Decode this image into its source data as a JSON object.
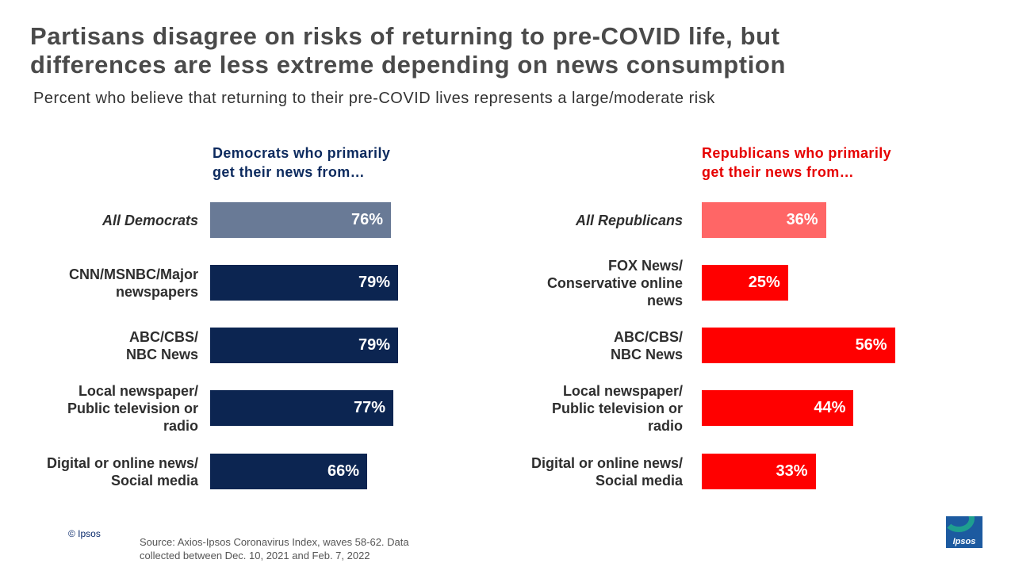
{
  "title_lines": [
    "Partisans disagree on risks of returning to pre-COVID life, but",
    "differences are less extreme depending on news consumption"
  ],
  "subtitle": "Percent who believe that returning to their pre-COVID lives represents a large/moderate risk",
  "chart_data": [
    {
      "type": "bar",
      "orientation": "horizontal",
      "heading_lines": [
        "Democrats who primarily",
        "get their news from…"
      ],
      "heading_color": "#0c2a5e",
      "xlim": [
        0,
        100
      ],
      "categories": [
        {
          "lines": [
            "All Democrats"
          ],
          "italic": true
        },
        {
          "lines": [
            "CNN/MSNBC/Major",
            "newspapers"
          ],
          "italic": false
        },
        {
          "lines": [
            "ABC/CBS/",
            "NBC News"
          ],
          "italic": false
        },
        {
          "lines": [
            "Local newspaper/",
            "Public television or",
            "radio"
          ],
          "italic": false
        },
        {
          "lines": [
            "Digital or online news/",
            "Social media"
          ],
          "italic": false
        }
      ],
      "values": [
        76,
        79,
        79,
        77,
        66
      ],
      "value_labels": [
        "76%",
        "79%",
        "79%",
        "77%",
        "66%"
      ],
      "bar_colors": [
        "#697a96",
        "#0c2551",
        "#0c2551",
        "#0c2551",
        "#0c2551"
      ]
    },
    {
      "type": "bar",
      "orientation": "horizontal",
      "heading_lines": [
        "Republicans who primarily",
        "get their news from…"
      ],
      "heading_color": "#e60000",
      "xlim": [
        0,
        100
      ],
      "categories": [
        {
          "lines": [
            "All Republicans"
          ],
          "italic": true
        },
        {
          "lines": [
            "FOX News/",
            "Conservative online",
            "news"
          ],
          "italic": false
        },
        {
          "lines": [
            "ABC/CBS/",
            "NBC News"
          ],
          "italic": false
        },
        {
          "lines": [
            "Local newspaper/",
            "Public television or",
            "radio"
          ],
          "italic": false
        },
        {
          "lines": [
            "Digital or online news/",
            "Social media"
          ],
          "italic": false
        }
      ],
      "values": [
        36,
        25,
        56,
        44,
        33
      ],
      "value_labels": [
        "36%",
        "25%",
        "56%",
        "44%",
        "33%"
      ],
      "bar_colors": [
        "#ff6666",
        "#ff0000",
        "#ff0000",
        "#ff0000",
        "#ff0000"
      ]
    }
  ],
  "footer": {
    "copyright": "© Ipsos",
    "source_lines": [
      "Source: Axios-Ipsos Coronavirus Index, waves 58-62. Data",
      "collected between Dec. 10, 2021 and Feb. 7, 2022"
    ],
    "logo_text": "Ipsos"
  }
}
